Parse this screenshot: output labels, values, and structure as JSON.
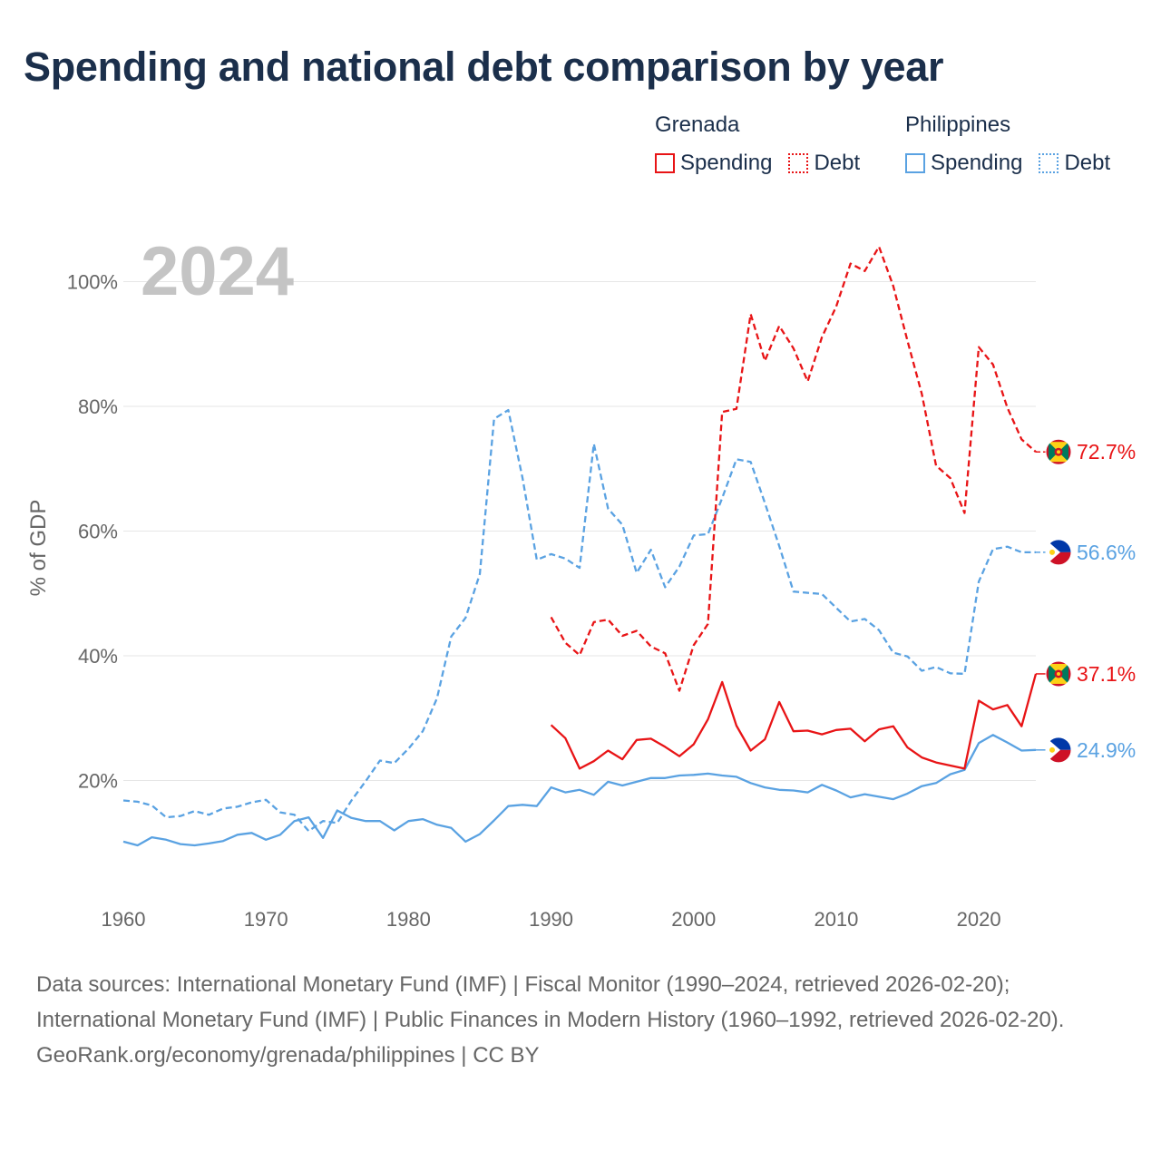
{
  "title": "Spending and national debt comparison by year",
  "year_label": "2024",
  "legend": {
    "groups": [
      {
        "name": "Grenada",
        "color": "#e81416",
        "items": [
          {
            "label": "Spending",
            "style": "solid"
          },
          {
            "label": "Debt",
            "style": "dotted"
          }
        ]
      },
      {
        "name": "Philippines",
        "color": "#5aa2e2",
        "items": [
          {
            "label": "Spending",
            "style": "solid"
          },
          {
            "label": "Debt",
            "style": "dotted"
          }
        ]
      }
    ]
  },
  "footer": {
    "sources": "Data sources: International Monetary Fund (IMF) | Fiscal Monitor (1990–2024, retrieved 2026-02-20); International Monetary Fund (IMF) | Public Finances in Modern History (1960–1992, retrieved 2026-02-20).",
    "credit": "GeoRank.org/economy/grenada/philippines | CC BY"
  },
  "chart_data": {
    "type": "line",
    "title": "Spending and national debt comparison by year",
    "ylabel": "% of GDP",
    "xlabel": "",
    "xlim": [
      1960,
      2024
    ],
    "ylim": [
      5,
      108
    ],
    "x_ticks": [
      1960,
      1970,
      1980,
      1990,
      2000,
      2010,
      2020
    ],
    "y_ticks": [
      20,
      40,
      60,
      80,
      100
    ],
    "y_tick_labels": [
      "20%",
      "40%",
      "60%",
      "80%",
      "100%"
    ],
    "grid": true,
    "series": [
      {
        "name": "Philippines Debt",
        "country": "Philippines",
        "metric": "Debt",
        "color": "#5aa2e2",
        "dash": "dashed",
        "end_label": "56.6%",
        "start_year": 1960,
        "values": [
          16.8,
          16.6,
          16.0,
          14.1,
          14.3,
          15.1,
          14.5,
          15.5,
          15.8,
          16.5,
          16.9,
          14.9,
          14.5,
          11.9,
          13.5,
          13.2,
          16.8,
          19.9,
          23.2,
          22.8,
          25.1,
          27.9,
          33.2,
          43.1,
          46.1,
          53.1,
          78.0,
          79.4,
          68.5,
          55.4,
          56.3,
          55.6,
          54.1,
          74.0,
          63.6,
          61.0,
          53.3,
          57.0,
          51.0,
          54.3,
          59.3,
          59.5,
          65.3,
          71.5,
          71.1,
          64.5,
          57.6,
          50.3,
          50.1,
          49.9,
          47.7,
          45.5,
          45.9,
          44.1,
          40.5,
          39.9,
          37.6,
          38.2,
          37.2,
          37.1,
          51.9,
          57.1,
          57.5,
          56.6,
          56.6
        ]
      },
      {
        "name": "Philippines Spending",
        "country": "Philippines",
        "metric": "Spending",
        "color": "#5aa2e2",
        "dash": "solid",
        "end_label": "24.9%",
        "start_year": 1960,
        "values": [
          10.2,
          9.6,
          10.9,
          10.5,
          9.8,
          9.6,
          9.9,
          10.3,
          11.3,
          11.6,
          10.5,
          11.3,
          13.5,
          14.1,
          10.8,
          15.2,
          14.0,
          13.5,
          13.5,
          12.0,
          13.5,
          13.8,
          12.9,
          12.4,
          10.2,
          11.4,
          13.6,
          15.9,
          16.1,
          15.9,
          18.9,
          18.1,
          18.5,
          17.7,
          19.8,
          19.2,
          19.8,
          20.4,
          20.4,
          20.8,
          20.9,
          21.1,
          20.8,
          20.6,
          19.6,
          18.9,
          18.5,
          18.4,
          18.1,
          19.3,
          18.4,
          17.3,
          17.8,
          17.4,
          17.0,
          17.9,
          19.1,
          19.6,
          21.0,
          21.7,
          26.0,
          27.3,
          26.1,
          24.8,
          24.9
        ]
      },
      {
        "name": "Grenada Debt",
        "country": "Grenada",
        "metric": "Debt",
        "color": "#e81416",
        "dash": "dashed",
        "end_label": "72.7%",
        "start_year": 1990,
        "values": [
          46.2,
          42.1,
          40.1,
          45.4,
          45.8,
          43.2,
          44.0,
          41.5,
          40.4,
          34.4,
          41.7,
          45.1,
          79.1,
          79.6,
          94.8,
          87.3,
          92.9,
          89.3,
          84.0,
          91.1,
          96.0,
          102.9,
          101.7,
          105.6,
          99.3,
          90.5,
          82.0,
          70.5,
          68.5,
          62.9,
          89.5,
          86.7,
          79.8,
          74.7,
          72.7
        ]
      },
      {
        "name": "Grenada Spending",
        "country": "Grenada",
        "metric": "Spending",
        "color": "#e81416",
        "dash": "solid",
        "end_label": "37.1%",
        "start_year": 1990,
        "values": [
          28.9,
          26.8,
          21.9,
          23.1,
          24.8,
          23.4,
          26.5,
          26.7,
          25.4,
          23.9,
          25.8,
          29.8,
          35.8,
          28.8,
          24.8,
          26.6,
          32.6,
          27.9,
          28.0,
          27.4,
          28.1,
          28.3,
          26.3,
          28.2,
          28.7,
          25.3,
          23.7,
          22.9,
          22.4,
          21.9,
          32.8,
          31.4,
          32.1,
          28.7,
          37.1
        ]
      }
    ]
  }
}
